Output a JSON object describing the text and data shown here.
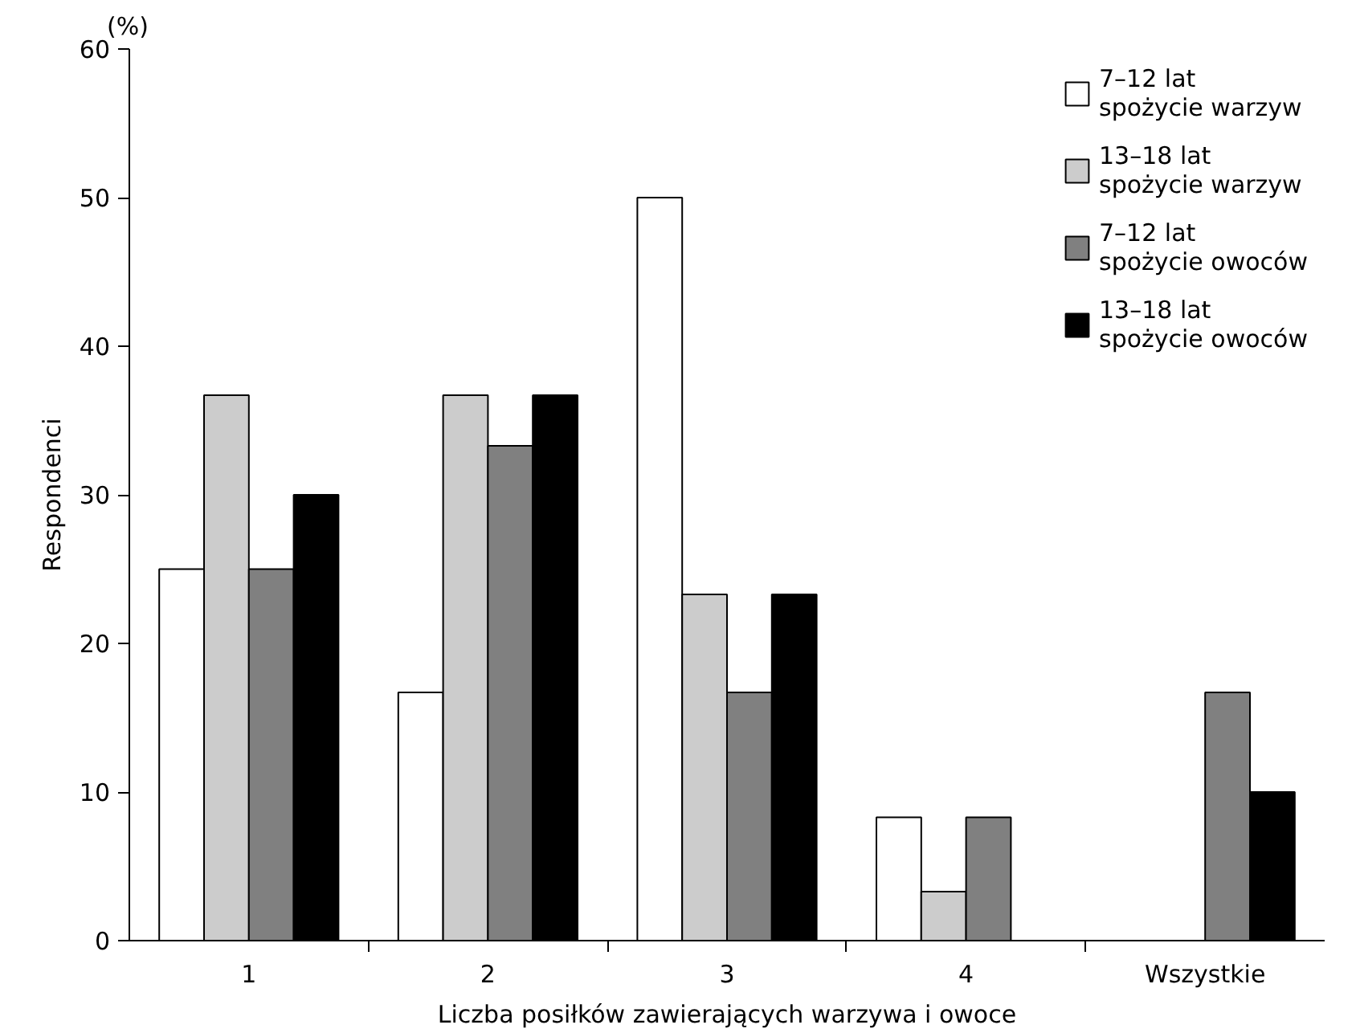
{
  "chart_data": {
    "type": "bar",
    "categories": [
      "1",
      "2",
      "3",
      "4",
      "Wszystkie"
    ],
    "xlabel": "Liczba posiłków zawierających warzywa i owoce",
    "ylabel": "Respondenci",
    "annotations": [
      "(%)"
    ],
    "ylim": [
      0,
      60
    ],
    "yticks": [
      0,
      10,
      20,
      30,
      40,
      50,
      60
    ],
    "grid": false,
    "legend": "top right",
    "series": [
      {
        "name": "7–12 lat\nspożycie warzyw",
        "color": "#ffffff",
        "values": [
          25,
          16.7,
          50,
          8.3,
          null
        ]
      },
      {
        "name": "13–18 lat\nspożycie warzyw",
        "color": "#cccccc",
        "values": [
          36.7,
          36.7,
          23.3,
          3.3,
          null
        ]
      },
      {
        "name": "7–12 lat\nspożycie owoców",
        "color": "#808080",
        "values": [
          25,
          33.3,
          16.7,
          8.3,
          16.7
        ]
      },
      {
        "name": "13–18 lat\nspożycie owoców",
        "color": "#000000",
        "values": [
          30,
          36.7,
          23.3,
          null,
          10
        ]
      }
    ]
  }
}
